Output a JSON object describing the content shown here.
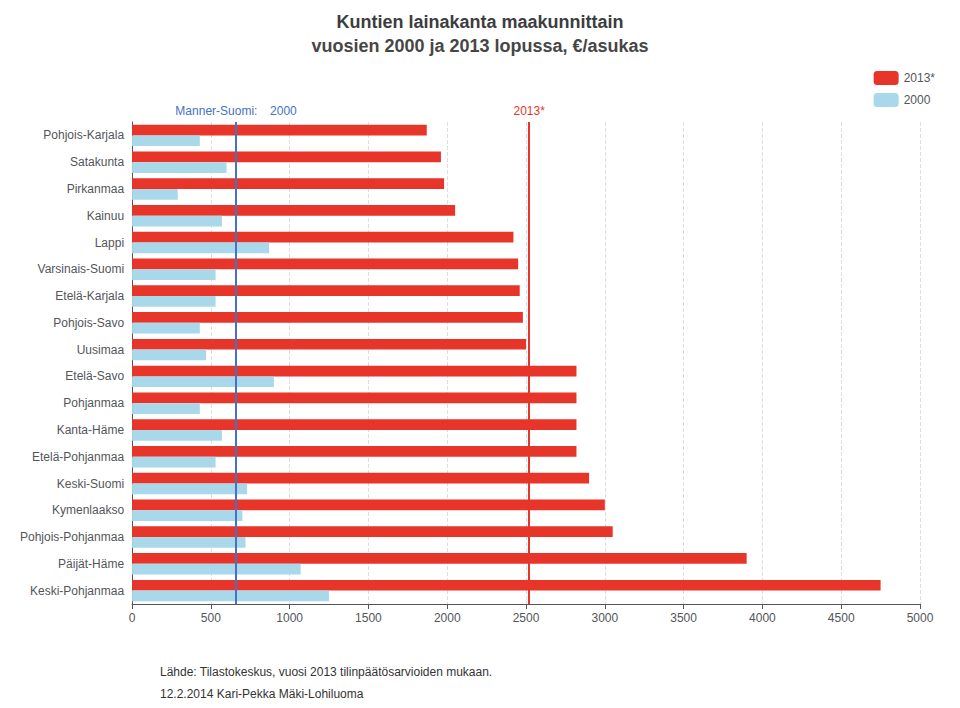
{
  "chart_data": {
    "type": "bar",
    "orientation": "horizontal",
    "title": "Kuntien lainakanta maakunnittain",
    "subtitle": "vuosien 2000 ja 2013 lopussa, €/asukas",
    "categories": [
      "Keski-Pohjanmaa",
      "Päijät-Häme",
      "Pohjois-Pohjanmaa",
      "Kymenlaakso",
      "Keski-Suomi",
      "Etelä-Pohjanmaa",
      "Kanta-Häme",
      "Pohjanmaa",
      "Etelä-Savo",
      "Uusimaa",
      "Pohjois-Savo",
      "Etelä-Karjala",
      "Varsinais-Suomi",
      "Lappi",
      "Kainuu",
      "Pirkanmaa",
      "Satakunta",
      "Pohjois-Karjala"
    ],
    "series": [
      {
        "name": "2013*",
        "color": "#e8352a",
        "values": [
          4750,
          3900,
          3050,
          3000,
          2900,
          2820,
          2820,
          2820,
          2820,
          2500,
          2480,
          2460,
          2450,
          2420,
          2050,
          1980,
          1960,
          1870
        ]
      },
      {
        "name": "2000",
        "color": "#a8d8ea",
        "values": [
          1250,
          1070,
          720,
          700,
          730,
          530,
          570,
          430,
          900,
          470,
          430,
          530,
          530,
          870,
          570,
          290,
          600,
          430
        ]
      }
    ],
    "xlim": [
      0,
      5000
    ],
    "xticks": [
      0,
      500,
      1000,
      1500,
      2000,
      2500,
      3000,
      3500,
      4000,
      4500,
      5000
    ],
    "grid": true,
    "legend": "upper right",
    "annotations": [
      {
        "type": "vline",
        "x": 660,
        "label": "Manner-Suomi:   2000",
        "color": "#4472c4"
      },
      {
        "type": "vline",
        "x": 2520,
        "label": "2013*",
        "color": "#e8352a"
      }
    ],
    "footnotes": [
      "Lähde: Tilastokeskus, vuosi 2013 tilinpäätösarvioiden mukaan.",
      "12.2.2014 Kari-Pekka Mäki-Lohiluoma"
    ]
  }
}
